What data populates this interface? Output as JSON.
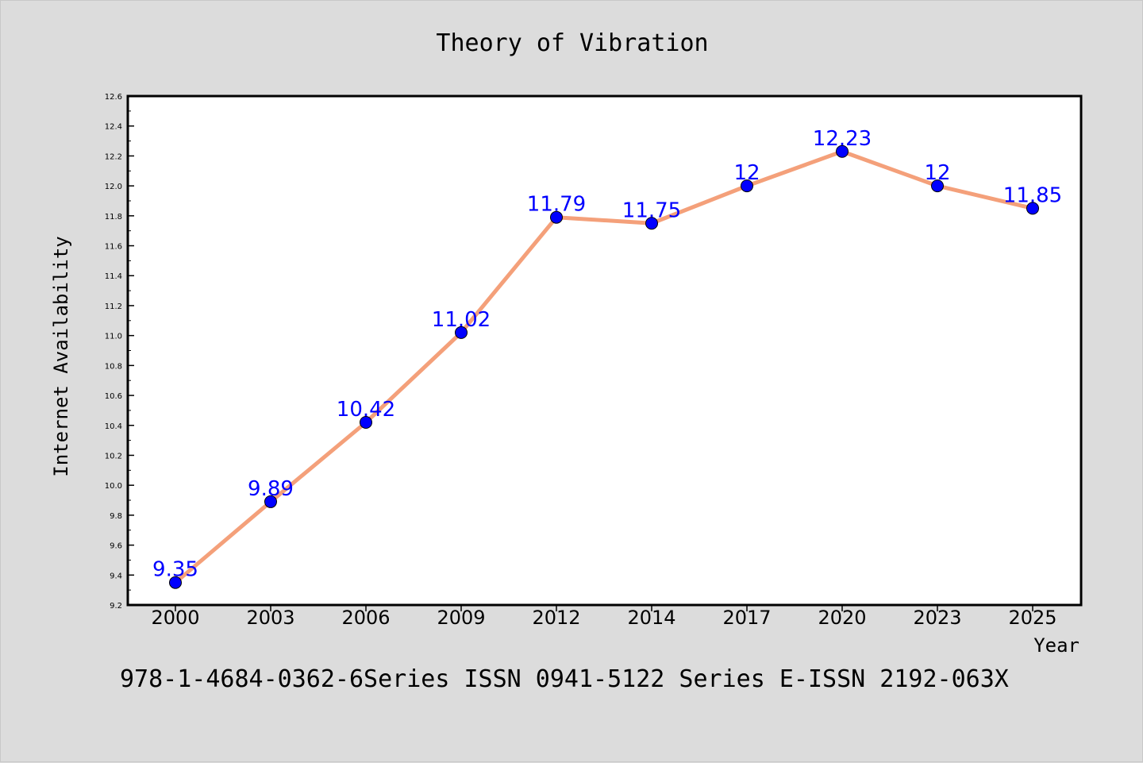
{
  "chart_data": {
    "type": "line",
    "title": "Theory of Vibration",
    "xlabel": "Year",
    "ylabel": "Internet Availability",
    "categories": [
      "2000",
      "2003",
      "2006",
      "2009",
      "2012",
      "2014",
      "2017",
      "2020",
      "2023",
      "2025"
    ],
    "series": [
      {
        "values": [
          9.35,
          9.89,
          10.42,
          11.02,
          11.79,
          11.75,
          12,
          12.23,
          12,
          11.85
        ],
        "data_labels": [
          "9.35",
          "9.89",
          "10.42",
          "11.02",
          "11.79",
          "11.75",
          "12",
          "12.23",
          "12",
          "11.85"
        ],
        "line_color": "#f4a07a",
        "marker_color": "#0000ff"
      }
    ],
    "ylim": [
      9.2,
      12.6
    ],
    "yticks": [
      "9.2",
      "9.4",
      "9.6",
      "9.8",
      "10.0",
      "10.2",
      "10.4",
      "10.6",
      "10.8",
      "11.0",
      "11.2",
      "11.4",
      "11.6",
      "11.8",
      "12.0",
      "12.2",
      "12.4",
      "12.6"
    ],
    "grid": false,
    "label_color": "#0000ff"
  },
  "footer_text": "978-1-4684-0362-6Series ISSN 0941-5122 Series E-ISSN 2192-063X",
  "colors": {
    "background": "#dcdcdc",
    "plot_background": "#ffffff",
    "line": "#f4a07a",
    "marker": "#0000ff"
  }
}
